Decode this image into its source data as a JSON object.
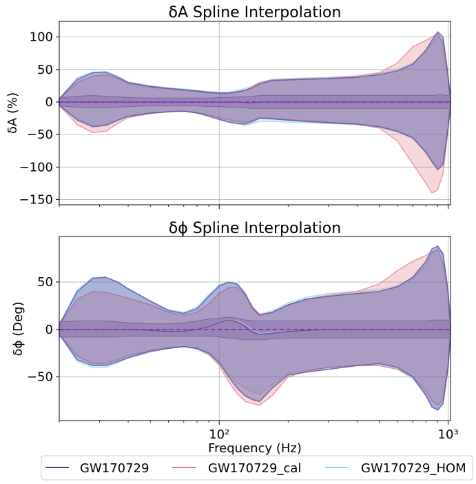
{
  "colors": {
    "GW170729": "#4b3f9e",
    "GW170729_cal": "#e07a87",
    "GW170729_HOM": "#8fd3f0",
    "zero_line": "#9b1fc8",
    "grid": "#b0b0b0"
  },
  "xlabel": "Frequency (Hz)",
  "legend": [
    "GW170729",
    "GW170729_cal",
    "GW170729_HOM"
  ],
  "chart_data": [
    {
      "type": "area",
      "title": "δA Spline Interpolation",
      "ylabel": "δA  (%)",
      "xscale": "log",
      "xlim": [
        20,
        1024
      ],
      "ylim": [
        -158,
        124
      ],
      "xticks": [
        100,
        1000
      ],
      "xtick_labels": [
        "10²",
        "10³"
      ],
      "yticks": [
        100,
        50,
        0,
        -50,
        -100,
        -150
      ],
      "ytick_labels": [
        "100",
        "50",
        "0",
        "−50",
        "−100",
        "−150"
      ],
      "grid": true,
      "x": [
        20,
        24,
        28,
        32,
        36,
        40,
        50,
        60,
        70,
        80,
        90,
        100,
        110,
        120,
        130,
        140,
        150,
        170,
        200,
        240,
        300,
        400,
        500,
        600,
        700,
        800,
        850,
        900,
        950,
        1000,
        1024
      ],
      "series": [
        {
          "name": "GW170729",
          "outer_upper": [
            5,
            35,
            45,
            46,
            38,
            30,
            24,
            21,
            19,
            17,
            15,
            14,
            14,
            16,
            18,
            22,
            28,
            33,
            34,
            35,
            36,
            38,
            42,
            48,
            58,
            80,
            95,
            108,
            100,
            40,
            5
          ],
          "outer_lower": [
            -5,
            -28,
            -38,
            -36,
            -28,
            -22,
            -17,
            -15,
            -14,
            -17,
            -22,
            -27,
            -31,
            -33,
            -34,
            -30,
            -25,
            -26,
            -28,
            -30,
            -32,
            -34,
            -38,
            -45,
            -55,
            -78,
            -92,
            -104,
            -96,
            -40,
            -5
          ],
          "inner_upper": [
            6,
            9,
            10,
            9,
            8,
            7,
            6,
            6,
            6,
            6,
            6,
            7,
            7,
            8,
            8,
            9,
            10,
            10,
            10,
            10,
            10,
            10,
            10,
            10,
            10,
            10,
            10,
            11,
            11,
            10,
            9
          ],
          "inner_lower": [
            -6,
            -8,
            -9,
            -9,
            -8,
            -7,
            -6,
            -6,
            -6,
            -6,
            -7,
            -7,
            -8,
            -8,
            -9,
            -10,
            -10,
            -10,
            -10,
            -10,
            -10,
            -10,
            -10,
            -10,
            -10,
            -10,
            -10,
            -10,
            -10,
            -10,
            -9
          ],
          "median": [
            0,
            0,
            0,
            0,
            0,
            0,
            0,
            0,
            0,
            0,
            0,
            0,
            0,
            0,
            -1,
            -1,
            0,
            0,
            0,
            0,
            0,
            0,
            0,
            0,
            0,
            0,
            0,
            0,
            0,
            0,
            0
          ]
        },
        {
          "name": "GW170729_cal",
          "outer_upper": [
            5,
            30,
            40,
            42,
            36,
            29,
            23,
            20,
            18,
            16,
            14,
            13,
            13,
            15,
            18,
            24,
            30,
            34,
            35,
            36,
            37,
            40,
            45,
            60,
            85,
            95,
            100,
            105,
            90,
            35,
            5
          ],
          "outer_lower": [
            -5,
            -35,
            -47,
            -45,
            -33,
            -24,
            -18,
            -15,
            -14,
            -16,
            -20,
            -24,
            -27,
            -30,
            -31,
            -28,
            -24,
            -25,
            -27,
            -29,
            -31,
            -34,
            -40,
            -60,
            -95,
            -125,
            -140,
            -135,
            -110,
            -40,
            -5
          ],
          "inner_upper": [
            6,
            9,
            10,
            9,
            8,
            7,
            6,
            6,
            6,
            6,
            6,
            7,
            7,
            8,
            8,
            9,
            10,
            10,
            10,
            10,
            10,
            10,
            10,
            10,
            10,
            10,
            10,
            11,
            11,
            10,
            9
          ],
          "inner_lower": [
            -6,
            -8,
            -9,
            -9,
            -8,
            -7,
            -6,
            -6,
            -6,
            -6,
            -7,
            -7,
            -8,
            -8,
            -9,
            -10,
            -10,
            -10,
            -10,
            -10,
            -10,
            -10,
            -10,
            -10,
            -10,
            -10,
            -10,
            -10,
            -10,
            -10,
            -9
          ],
          "median": [
            0,
            0,
            0,
            0,
            0,
            0,
            0,
            0,
            0,
            0,
            0,
            0,
            0,
            0,
            0,
            0,
            0,
            0,
            0,
            0,
            0,
            0,
            0,
            0,
            0,
            0,
            0,
            0,
            0,
            0,
            0
          ]
        },
        {
          "name": "GW170729_HOM",
          "outer_upper": [
            5,
            38,
            46,
            47,
            40,
            31,
            25,
            22,
            20,
            18,
            16,
            15,
            15,
            18,
            21,
            25,
            30,
            35,
            36,
            37,
            38,
            40,
            44,
            50,
            60,
            78,
            90,
            100,
            95,
            40,
            5
          ],
          "outer_lower": [
            -5,
            -26,
            -36,
            -35,
            -28,
            -22,
            -17,
            -15,
            -14,
            -16,
            -20,
            -25,
            -30,
            -34,
            -36,
            -33,
            -30,
            -30,
            -31,
            -32,
            -33,
            -35,
            -39,
            -46,
            -56,
            -76,
            -90,
            -100,
            -92,
            -38,
            -5
          ],
          "inner_upper": [
            6,
            9,
            10,
            9,
            8,
            7,
            6,
            6,
            6,
            6,
            6,
            7,
            7,
            8,
            8,
            9,
            10,
            10,
            10,
            10,
            10,
            10,
            10,
            10,
            10,
            10,
            10,
            11,
            11,
            10,
            9
          ],
          "inner_lower": [
            -6,
            -8,
            -9,
            -9,
            -8,
            -7,
            -6,
            -6,
            -6,
            -6,
            -7,
            -7,
            -8,
            -8,
            -9,
            -10,
            -10,
            -10,
            -10,
            -10,
            -10,
            -10,
            -10,
            -10,
            -10,
            -10,
            -10,
            -10,
            -10,
            -10,
            -9
          ],
          "median": [
            0,
            0,
            0,
            0,
            0,
            0,
            0,
            0,
            0,
            0,
            0,
            0,
            0,
            0,
            0,
            0,
            0,
            0,
            0,
            0,
            0,
            0,
            0,
            0,
            0,
            0,
            0,
            0,
            0,
            0,
            0
          ]
        }
      ]
    },
    {
      "type": "area",
      "title": "δϕ Spline Interpolation",
      "ylabel": "δϕ (Deg)",
      "xscale": "log",
      "xlim": [
        20,
        1024
      ],
      "ylim": [
        -96,
        98
      ],
      "xticks": [
        100,
        1000
      ],
      "xtick_labels": [
        "10²",
        "10³"
      ],
      "yticks": [
        50,
        0,
        -50
      ],
      "ytick_labels": [
        "50",
        "0",
        "−50"
      ],
      "grid": true,
      "x": [
        20,
        24,
        28,
        32,
        36,
        40,
        50,
        60,
        70,
        80,
        90,
        100,
        110,
        120,
        130,
        140,
        150,
        170,
        200,
        240,
        300,
        400,
        500,
        600,
        700,
        800,
        850,
        900,
        950,
        1000,
        1024
      ],
      "series": [
        {
          "name": "GW170729",
          "outer_upper": [
            5,
            40,
            54,
            55,
            50,
            43,
            30,
            20,
            17,
            22,
            35,
            46,
            50,
            48,
            38,
            22,
            15,
            18,
            26,
            32,
            35,
            38,
            40,
            45,
            55,
            72,
            85,
            88,
            80,
            40,
            5
          ],
          "outer_lower": [
            -5,
            -32,
            -38,
            -38,
            -34,
            -30,
            -23,
            -20,
            -18,
            -20,
            -25,
            -35,
            -50,
            -62,
            -70,
            -74,
            -76,
            -62,
            -48,
            -45,
            -42,
            -38,
            -36,
            -40,
            -50,
            -70,
            -82,
            -85,
            -78,
            -40,
            -5
          ],
          "inner_upper": [
            8,
            9,
            9,
            9,
            8,
            7,
            6,
            6,
            7,
            9,
            11,
            12,
            13,
            12,
            10,
            9,
            9,
            9,
            9,
            9,
            9,
            9,
            9,
            9,
            9,
            9,
            10,
            10,
            10,
            10,
            9
          ],
          "inner_lower": [
            -8,
            -8,
            -8,
            -8,
            -8,
            -7,
            -7,
            -7,
            -7,
            -7,
            -7,
            -8,
            -9,
            -10,
            -11,
            -11,
            -11,
            -10,
            -9,
            -9,
            -9,
            -9,
            -9,
            -9,
            -9,
            -9,
            -9,
            -9,
            -9,
            -9,
            -8
          ],
          "median": [
            0,
            0,
            0,
            0,
            0,
            0,
            -1,
            -2,
            -2,
            0,
            3,
            7,
            10,
            8,
            3,
            -3,
            -5,
            -4,
            -2,
            -1,
            0,
            0,
            0,
            0,
            0,
            0,
            0,
            0,
            0,
            0,
            0
          ]
        },
        {
          "name": "GW170729_cal",
          "outer_upper": [
            5,
            32,
            40,
            39,
            36,
            33,
            26,
            18,
            15,
            18,
            27,
            38,
            44,
            44,
            36,
            24,
            16,
            18,
            26,
            32,
            36,
            40,
            48,
            62,
            72,
            78,
            82,
            84,
            70,
            35,
            5
          ],
          "outer_lower": [
            -5,
            -28,
            -36,
            -36,
            -32,
            -28,
            -22,
            -19,
            -18,
            -20,
            -26,
            -38,
            -55,
            -68,
            -76,
            -78,
            -80,
            -70,
            -50,
            -44,
            -40,
            -38,
            -38,
            -42,
            -50,
            -65,
            -75,
            -80,
            -74,
            -36,
            -5
          ],
          "inner_upper": [
            8,
            9,
            9,
            9,
            8,
            7,
            6,
            6,
            7,
            9,
            11,
            12,
            13,
            12,
            10,
            9,
            9,
            9,
            9,
            9,
            9,
            9,
            9,
            9,
            9,
            9,
            10,
            10,
            10,
            10,
            9
          ],
          "inner_lower": [
            -8,
            -8,
            -8,
            -8,
            -8,
            -7,
            -7,
            -7,
            -7,
            -7,
            -7,
            -8,
            -9,
            -10,
            -11,
            -11,
            -11,
            -10,
            -9,
            -9,
            -9,
            -9,
            -9,
            -9,
            -9,
            -9,
            -9,
            -9,
            -9,
            -9,
            -8
          ],
          "median": [
            0,
            0,
            0,
            0,
            0,
            0,
            -1,
            -2,
            -2,
            0,
            3,
            6,
            9,
            10,
            6,
            0,
            -3,
            -2,
            -1,
            0,
            0,
            0,
            0,
            0,
            0,
            0,
            0,
            0,
            0,
            0,
            0
          ]
        },
        {
          "name": "GW170729_HOM",
          "outer_upper": [
            5,
            42,
            55,
            55,
            50,
            43,
            30,
            21,
            18,
            24,
            37,
            47,
            50,
            47,
            37,
            22,
            16,
            20,
            28,
            34,
            38,
            40,
            42,
            46,
            54,
            68,
            80,
            86,
            78,
            40,
            5
          ],
          "outer_lower": [
            -5,
            -34,
            -40,
            -40,
            -35,
            -30,
            -24,
            -20,
            -18,
            -21,
            -27,
            -36,
            -48,
            -56,
            -62,
            -66,
            -68,
            -58,
            -46,
            -43,
            -40,
            -38,
            -38,
            -42,
            -52,
            -68,
            -80,
            -84,
            -78,
            -40,
            -5
          ],
          "inner_upper": [
            8,
            9,
            9,
            9,
            8,
            7,
            6,
            6,
            7,
            9,
            11,
            12,
            13,
            12,
            10,
            9,
            9,
            9,
            9,
            9,
            9,
            9,
            9,
            9,
            9,
            9,
            10,
            10,
            10,
            10,
            9
          ],
          "inner_lower": [
            -8,
            -8,
            -8,
            -8,
            -8,
            -7,
            -7,
            -7,
            -7,
            -7,
            -7,
            -8,
            -9,
            -10,
            -11,
            -11,
            -11,
            -10,
            -9,
            -9,
            -9,
            -9,
            -9,
            -9,
            -9,
            -9,
            -9,
            -9,
            -9,
            -9,
            -8
          ],
          "median": [
            0,
            0,
            0,
            0,
            0,
            0,
            -1,
            -2,
            -2,
            0,
            3,
            7,
            10,
            9,
            5,
            -1,
            -4,
            -3,
            -1,
            0,
            0,
            0,
            0,
            0,
            0,
            0,
            0,
            0,
            0,
            0,
            0
          ]
        }
      ]
    }
  ]
}
